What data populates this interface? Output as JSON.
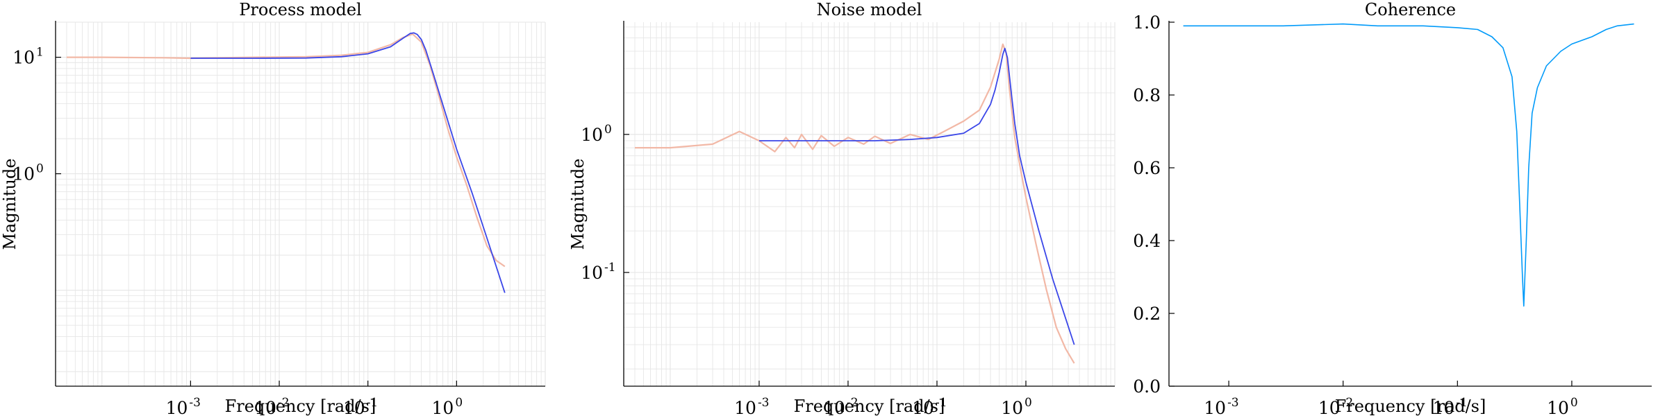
{
  "colors": {
    "model": "#3a46e8",
    "estimate": "#f2b8a6",
    "coherence": "#009af9",
    "grid": "#e6e6e6",
    "axis": "#000000"
  },
  "chart_data": [
    {
      "id": "process",
      "type": "line",
      "title": "Process model",
      "xlabel": "Frequency [rad/s]",
      "ylabel": "Magnitude",
      "xscale": "log",
      "yscale": "log",
      "xlim": [
        3e-05,
        10
      ],
      "ylim": [
        0.015,
        20
      ],
      "grid": true,
      "legend": "none",
      "x_ticks": [
        {
          "base": "10",
          "exp": "-3",
          "value": 0.001
        },
        {
          "base": "10",
          "exp": "-2",
          "value": 0.01
        },
        {
          "base": "10",
          "exp": "-1",
          "value": 0.1
        },
        {
          "base": "10",
          "exp": "0",
          "value": 1
        }
      ],
      "y_ticks": [
        {
          "base": "10",
          "exp": "1",
          "value": 10
        },
        {
          "base": "10",
          "exp": "0",
          "value": 1
        }
      ],
      "series": [
        {
          "role": "estimate",
          "x": [
            4e-05,
            0.0001,
            0.0005,
            0.001,
            0.005,
            0.02,
            0.05,
            0.1,
            0.18,
            0.25,
            0.32,
            0.4,
            0.5,
            0.62,
            0.8,
            1.0,
            1.3,
            1.7,
            2.2,
            2.8,
            3.5
          ],
          "y": [
            10.0,
            10.0,
            9.9,
            9.8,
            10.0,
            10.1,
            10.4,
            11.0,
            12.8,
            14.8,
            15.8,
            13.5,
            8.6,
            4.9,
            2.4,
            1.4,
            0.8,
            0.42,
            0.24,
            0.18,
            0.16
          ]
        },
        {
          "role": "model",
          "x": [
            0.001,
            0.005,
            0.02,
            0.05,
            0.1,
            0.18,
            0.25,
            0.3,
            0.33,
            0.36,
            0.4,
            0.45,
            0.55,
            0.7,
            1.0,
            1.5,
            2.2,
            3.5
          ],
          "y": [
            9.8,
            9.8,
            9.85,
            10.1,
            10.7,
            12.3,
            14.6,
            16.0,
            16.2,
            15.7,
            14.2,
            11.5,
            7.1,
            3.9,
            1.63,
            0.68,
            0.28,
            0.095
          ]
        }
      ]
    },
    {
      "id": "noise",
      "type": "line",
      "title": "Noise model",
      "xlabel": "Frequency [rad/s]",
      "ylabel": "Magnitude",
      "xscale": "log",
      "yscale": "log",
      "xlim": [
        3e-05,
        10
      ],
      "ylim": [
        0.015,
        6.5
      ],
      "grid": true,
      "legend": "none",
      "x_ticks": [
        {
          "base": "10",
          "exp": "-3",
          "value": 0.001
        },
        {
          "base": "10",
          "exp": "-2",
          "value": 0.01
        },
        {
          "base": "10",
          "exp": "-1",
          "value": 0.1
        },
        {
          "base": "10",
          "exp": "0",
          "value": 1
        }
      ],
      "y_ticks": [
        {
          "base": "10",
          "exp": "0",
          "value": 1
        },
        {
          "base": "10",
          "exp": "-1",
          "value": 0.1
        }
      ],
      "series": [
        {
          "role": "estimate",
          "x": [
            4e-05,
            0.0001,
            0.0003,
            0.0006,
            0.001,
            0.0015,
            0.002,
            0.0025,
            0.003,
            0.004,
            0.005,
            0.007,
            0.01,
            0.015,
            0.02,
            0.03,
            0.05,
            0.08,
            0.12,
            0.2,
            0.3,
            0.4,
            0.5,
            0.55,
            0.6,
            0.65,
            0.75,
            0.9,
            1.0,
            1.3,
            1.7,
            2.2,
            2.8,
            3.5
          ],
          "y": [
            0.8,
            0.8,
            0.85,
            1.05,
            0.9,
            0.75,
            0.95,
            0.8,
            1.0,
            0.78,
            0.98,
            0.82,
            0.95,
            0.85,
            0.97,
            0.86,
            1.0,
            0.92,
            1.05,
            1.25,
            1.5,
            2.2,
            3.5,
            4.5,
            3.9,
            2.2,
            0.95,
            0.5,
            0.35,
            0.16,
            0.075,
            0.04,
            0.028,
            0.022
          ]
        },
        {
          "role": "model",
          "x": [
            0.001,
            0.005,
            0.02,
            0.05,
            0.1,
            0.2,
            0.3,
            0.4,
            0.45,
            0.5,
            0.55,
            0.58,
            0.62,
            0.68,
            0.75,
            0.85,
            1.0,
            1.4,
            2.0,
            3.5
          ],
          "y": [
            0.9,
            0.9,
            0.9,
            0.92,
            0.95,
            1.02,
            1.2,
            1.65,
            2.1,
            2.8,
            3.8,
            4.2,
            3.6,
            2.1,
            1.2,
            0.7,
            0.45,
            0.2,
            0.09,
            0.03
          ]
        }
      ]
    },
    {
      "id": "coherence",
      "type": "line",
      "title": "Coherence",
      "xlabel": "Frequency [rad/s]",
      "ylabel": "",
      "xscale": "log",
      "yscale": "linear",
      "xlim": [
        0.0003,
        5
      ],
      "ylim": [
        0,
        1
      ],
      "grid": false,
      "legend": "none",
      "x_ticks": [
        {
          "base": "10",
          "exp": "-3",
          "value": 0.001
        },
        {
          "base": "10",
          "exp": "-2",
          "value": 0.01
        },
        {
          "base": "10",
          "exp": "-1",
          "value": 0.1
        },
        {
          "base": "10",
          "exp": "0",
          "value": 1
        }
      ],
      "y_ticks": [
        "0.0",
        "0.2",
        "0.4",
        "0.6",
        "0.8",
        "1.0"
      ],
      "series": [
        {
          "role": "coherence",
          "x": [
            0.0004,
            0.001,
            0.003,
            0.01,
            0.02,
            0.05,
            0.1,
            0.15,
            0.2,
            0.25,
            0.3,
            0.33,
            0.35,
            0.37,
            0.38,
            0.4,
            0.42,
            0.45,
            0.5,
            0.6,
            0.8,
            1.0,
            1.5,
            2.0,
            2.5,
            3.5
          ],
          "y": [
            0.99,
            0.99,
            0.99,
            0.995,
            0.99,
            0.99,
            0.985,
            0.98,
            0.96,
            0.93,
            0.85,
            0.7,
            0.5,
            0.3,
            0.22,
            0.4,
            0.6,
            0.75,
            0.82,
            0.88,
            0.92,
            0.94,
            0.96,
            0.98,
            0.99,
            0.995
          ]
        }
      ]
    }
  ]
}
